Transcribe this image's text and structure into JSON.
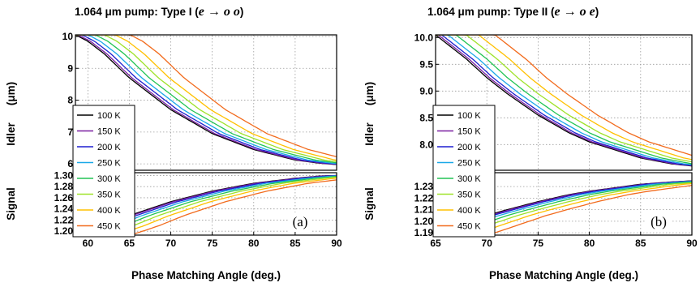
{
  "chart_data": [
    {
      "type": "line",
      "title": "1.064 μm pump:  Type I  (",
      "title_formula": "e → o o",
      "title_close": ")",
      "xlabel": "Phase Matching Angle (deg.)",
      "idler_label": "Idler",
      "idler_unit": "(μm)",
      "signal_label": "Signal",
      "panel_label": "(a)",
      "xlim": [
        58.5,
        90
      ],
      "xticks": [
        "60",
        "65",
        "70",
        "75",
        "80",
        "85",
        "90"
      ],
      "idler_ylim": [
        5.8,
        10.05
      ],
      "idler_yticks": [
        "6",
        "7",
        "8",
        "9",
        "10"
      ],
      "signal_ylim": [
        1.193,
        1.305
      ],
      "signal_yticks": [
        "1.20",
        "1.22",
        "1.24",
        "1.26",
        "1.28",
        "1.30"
      ],
      "grid": true,
      "legend_position": "left",
      "series": [
        {
          "name": "100 K",
          "color": "#000000",
          "shift": 0.0
        },
        {
          "name": "150 K",
          "color": "#7a1fa0",
          "shift": 0.3
        },
        {
          "name": "200 K",
          "color": "#1f1fd0",
          "shift": 0.8
        },
        {
          "name": "250 K",
          "color": "#1aa8e8",
          "shift": 1.5
        },
        {
          "name": "300 K",
          "color": "#22c455",
          "shift": 2.4
        },
        {
          "name": "350 K",
          "color": "#9fe22a",
          "shift": 3.5
        },
        {
          "name": "400 K",
          "color": "#ffc000",
          "shift": 4.8
        },
        {
          "name": "450 K",
          "color": "#f26b1d",
          "shift": 6.6
        }
      ],
      "idler_curve": {
        "x": [
          58.5,
          60,
          62,
          65,
          70,
          75,
          80,
          85,
          88,
          90
        ],
        "y": [
          10.05,
          9.85,
          9.45,
          8.7,
          7.7,
          6.95,
          6.45,
          6.12,
          6.02,
          5.98
        ]
      },
      "signal_curve": {
        "x": [
          58.5,
          60,
          62,
          65,
          70,
          75,
          80,
          85,
          88,
          90
        ],
        "y": [
          1.193,
          1.2,
          1.21,
          1.228,
          1.253,
          1.272,
          1.286,
          1.295,
          1.299,
          1.3
        ]
      }
    },
    {
      "type": "line",
      "title": "1.064 μm pump:  Type II  (",
      "title_formula": "e → o e",
      "title_close": ")",
      "xlabel": "Phase Matching Angle (deg.)",
      "idler_label": "Idler",
      "idler_unit": "(μm)",
      "signal_label": "Signal",
      "panel_label": "(b)",
      "xlim": [
        65,
        90
      ],
      "xticks": [
        "65",
        "70",
        "75",
        "80",
        "85",
        "90"
      ],
      "idler_ylim": [
        7.52,
        10.05
      ],
      "idler_yticks": [
        "8.0",
        "8.5",
        "9.0",
        "9.5",
        "10.0"
      ],
      "signal_ylim": [
        1.188,
        1.242
      ],
      "signal_yticks": [
        "1.19",
        "1.20",
        "1.21",
        "1.22",
        "1.23"
      ],
      "grid": true,
      "legend_position": "left",
      "series": [
        {
          "name": "100 K",
          "color": "#000000",
          "shift": 0.0
        },
        {
          "name": "150 K",
          "color": "#7a1fa0",
          "shift": 0.25
        },
        {
          "name": "200 K",
          "color": "#1f1fd0",
          "shift": 0.6
        },
        {
          "name": "250 K",
          "color": "#1aa8e8",
          "shift": 1.2
        },
        {
          "name": "300 K",
          "color": "#22c455",
          "shift": 2.0
        },
        {
          "name": "350 K",
          "color": "#9fe22a",
          "shift": 3.0
        },
        {
          "name": "400 K",
          "color": "#ffc000",
          "shift": 4.2
        },
        {
          "name": "450 K",
          "color": "#f26b1d",
          "shift": 5.8
        }
      ],
      "idler_curve": {
        "x": [
          65,
          66,
          68,
          70,
          72,
          75,
          78,
          80,
          85,
          88,
          90
        ],
        "y": [
          10.05,
          9.9,
          9.6,
          9.25,
          8.95,
          8.55,
          8.22,
          8.05,
          7.75,
          7.64,
          7.6
        ]
      },
      "signal_curve": {
        "x": [
          65,
          66,
          68,
          70,
          72,
          75,
          78,
          80,
          85,
          88,
          90
        ],
        "y": [
          1.19,
          1.193,
          1.199,
          1.205,
          1.21,
          1.217,
          1.223,
          1.226,
          1.232,
          1.234,
          1.235
        ]
      }
    }
  ]
}
